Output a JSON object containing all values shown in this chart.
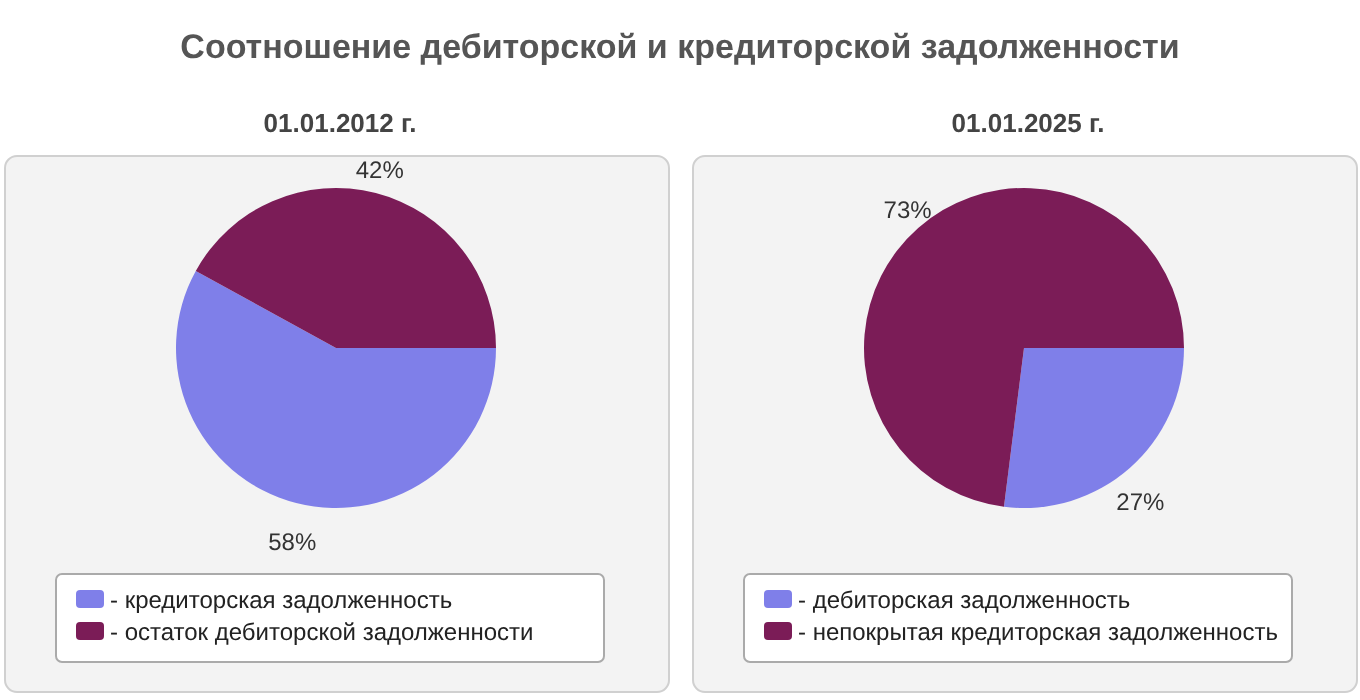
{
  "chart_data": [
    {
      "type": "pie",
      "title": "Соотношение дебиторской и кредиторской задолженности",
      "subtitle": "01.01.2012 г.",
      "categories": [
        "- кредиторская задолженность",
        "- остаток дебиторской задолженности"
      ],
      "values": [
        58,
        42
      ],
      "colors": [
        "#7f7fe9",
        "#7b1c57"
      ],
      "value_labels": [
        "58%",
        "42%"
      ],
      "legend": "bottom"
    },
    {
      "type": "pie",
      "subtitle": "01.01.2025 г.",
      "categories": [
        "- дебиторская задолженность",
        "- непокрытая кредиторская задолженность"
      ],
      "values": [
        27,
        73
      ],
      "colors": [
        "#7f7fe9",
        "#7b1c57"
      ],
      "value_labels": [
        "27%",
        "73%"
      ],
      "legend": "bottom"
    }
  ]
}
